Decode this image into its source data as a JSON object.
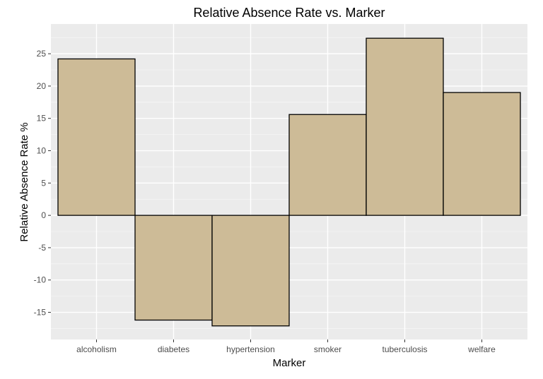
{
  "chart_data": {
    "type": "bar",
    "title": "Relative Absence Rate vs. Marker",
    "xlabel": "Marker",
    "ylabel": "Relative Absence Rate %",
    "categories": [
      "alcoholism",
      "diabetes",
      "hypertension",
      "smoker",
      "tuberculosis",
      "welfare"
    ],
    "values": [
      24.2,
      -16.2,
      -17.1,
      15.6,
      27.4,
      19.0
    ],
    "ylim": [
      -19.2,
      29.6
    ],
    "yticks": [
      -15,
      -10,
      -5,
      0,
      5,
      10,
      15,
      20,
      25
    ],
    "grid": true,
    "legend": "none",
    "colors": {
      "bar_fill": "#CDBB97",
      "bar_stroke": "#000000",
      "panel_bg": "#EBEBEB",
      "grid_major": "#FFFFFF",
      "grid_minor": "#F5F5F5",
      "tick_text": "#4D4D4D"
    }
  }
}
